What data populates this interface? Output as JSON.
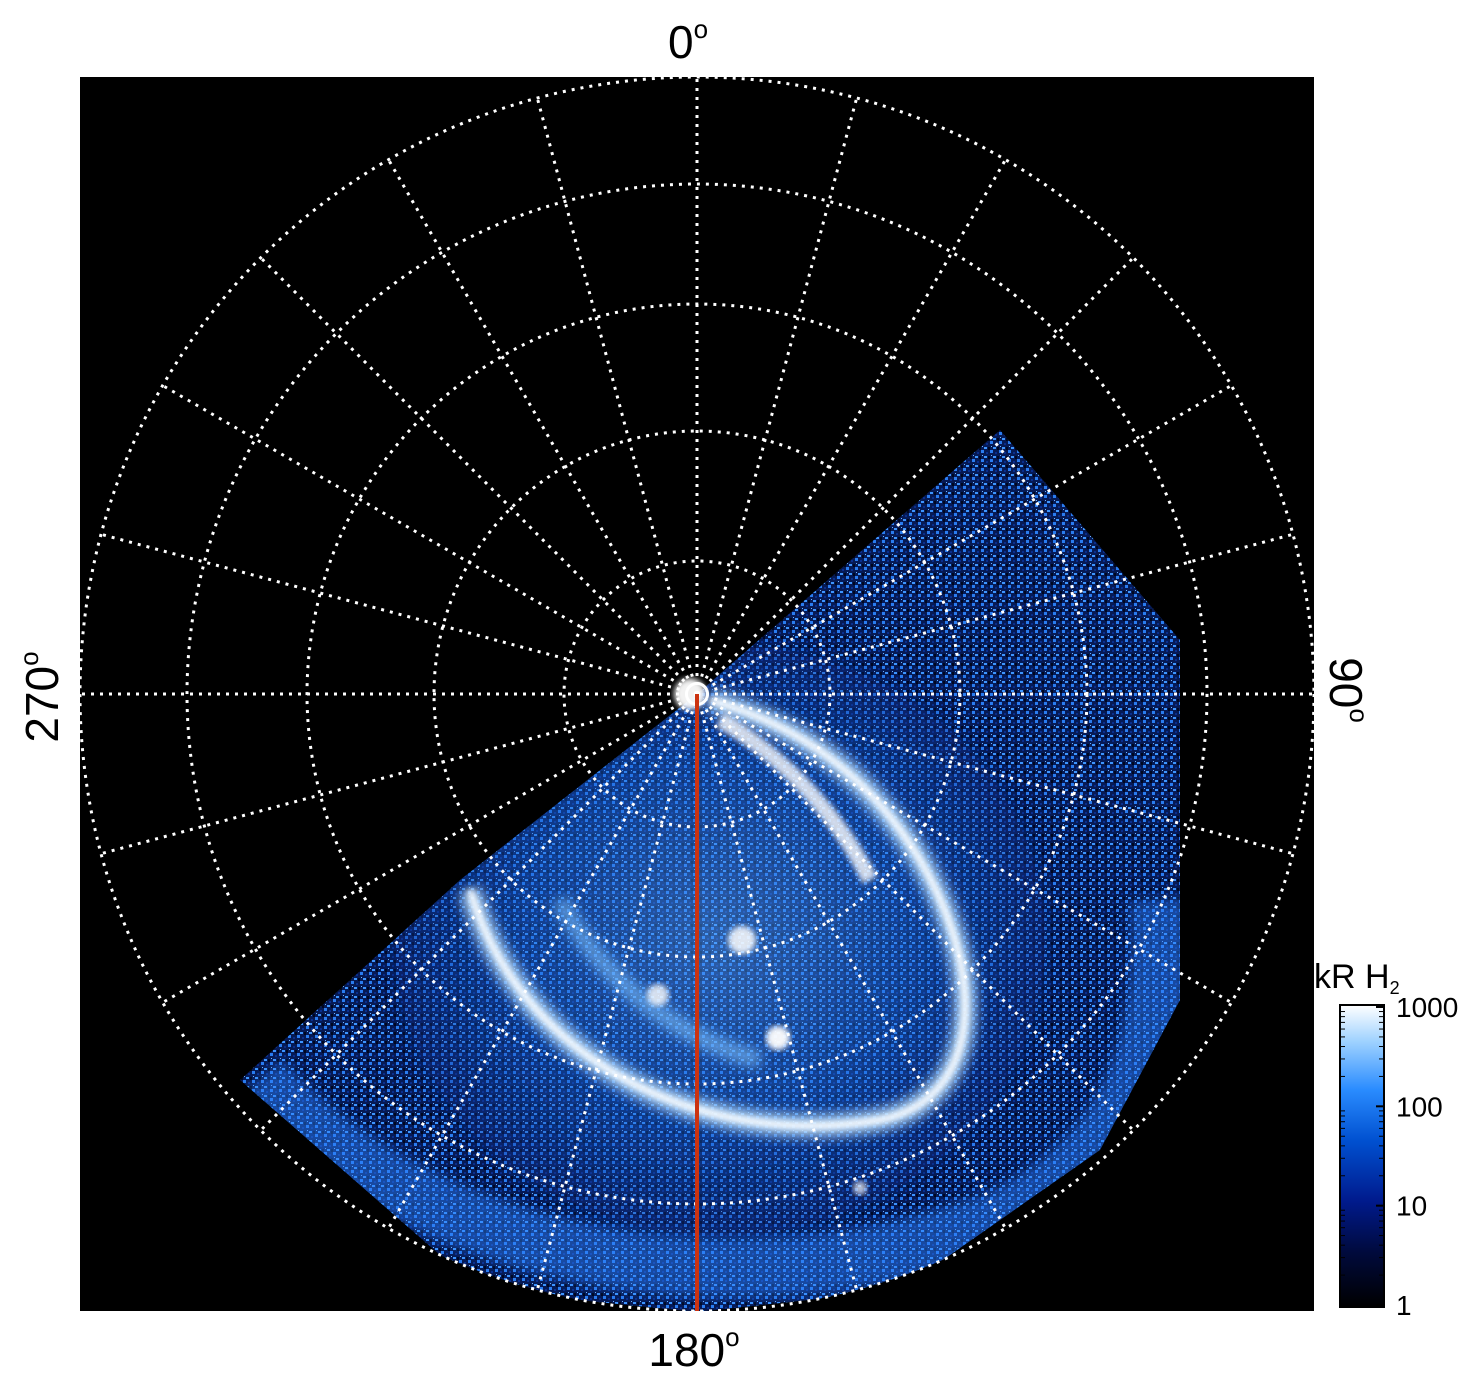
{
  "polar_map": {
    "angle_labels": {
      "top": "0",
      "right": "90",
      "bottom": "180",
      "left": "270"
    },
    "degree_symbol": "o",
    "meridian_step_deg": 15,
    "parallel_rings": 6,
    "highlight_meridian_deg": 180,
    "highlight_color": "#cc3311",
    "grid_color": "#ffffff",
    "background_color": "#000000"
  },
  "colorbar": {
    "title_main": "kR H",
    "title_subscript": "2",
    "tick_labels": [
      "1000",
      "100",
      "10",
      "1"
    ],
    "scale": "log",
    "range": [
      1,
      1000
    ],
    "colors": [
      "#000000",
      "#000a3c",
      "#001a8c",
      "#0050d0",
      "#2a8cff",
      "#9fd2ff",
      "#ffffff"
    ]
  }
}
